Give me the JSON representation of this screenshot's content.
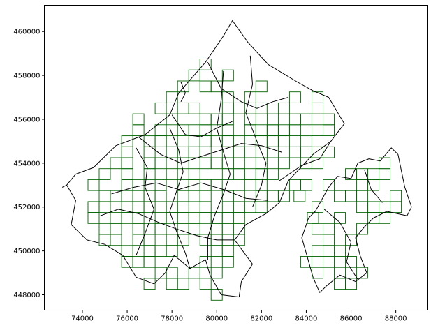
{
  "chart_data": {
    "type": "map",
    "title": "",
    "xlabel": "",
    "ylabel": "",
    "xlim": [
      72300,
      89400
    ],
    "ylim": [
      447300,
      461200
    ],
    "xticks": [
      74000,
      76000,
      78000,
      80000,
      82000,
      84000,
      86000,
      88000
    ],
    "yticks": [
      448000,
      450000,
      452000,
      454000,
      456000,
      458000,
      460000
    ],
    "grid": false,
    "colors": {
      "boundary": "#000000",
      "grid_cells": "#006400"
    },
    "boundaries": [
      [
        [
          74500,
          453800
        ],
        [
          75500,
          454800
        ],
        [
          76800,
          455300
        ],
        [
          77900,
          456200
        ],
        [
          78300,
          457200
        ],
        [
          79500,
          458600
        ],
        [
          80300,
          459800
        ],
        [
          80700,
          460500
        ],
        [
          81400,
          459500
        ],
        [
          82300,
          458500
        ],
        [
          83600,
          457700
        ],
        [
          84300,
          457300
        ],
        [
          85000,
          457000
        ],
        [
          85700,
          455800
        ],
        [
          85100,
          455000
        ],
        [
          84300,
          454400
        ],
        [
          83200,
          453200
        ],
        [
          82800,
          452200
        ],
        [
          82200,
          451700
        ],
        [
          81300,
          451200
        ],
        [
          80800,
          450500
        ],
        [
          81600,
          449400
        ],
        [
          81100,
          448600
        ],
        [
          81000,
          447900
        ],
        [
          80200,
          448000
        ],
        [
          79700,
          448900
        ],
        [
          79500,
          449600
        ],
        [
          78800,
          449200
        ],
        [
          78100,
          449800
        ],
        [
          77700,
          449000
        ],
        [
          77200,
          448500
        ],
        [
          76400,
          448800
        ],
        [
          75800,
          449800
        ],
        [
          75000,
          450300
        ],
        [
          74200,
          450500
        ],
        [
          73500,
          451200
        ],
        [
          73700,
          452300
        ],
        [
          73300,
          453000
        ],
        [
          73700,
          453500
        ],
        [
          74500,
          453800
        ]
      ],
      [
        [
          84400,
          451800
        ],
        [
          85000,
          452900
        ],
        [
          85400,
          453400
        ],
        [
          86000,
          453300
        ],
        [
          86300,
          454000
        ],
        [
          86800,
          454200
        ],
        [
          87300,
          454100
        ],
        [
          87800,
          454700
        ],
        [
          88100,
          454400
        ],
        [
          88400,
          452900
        ],
        [
          88700,
          452000
        ],
        [
          88500,
          451600
        ],
        [
          87600,
          451800
        ],
        [
          87000,
          451500
        ],
        [
          86600,
          451100
        ],
        [
          86200,
          450600
        ],
        [
          86400,
          449800
        ],
        [
          86700,
          449000
        ],
        [
          86200,
          448600
        ],
        [
          85500,
          448900
        ],
        [
          84900,
          448400
        ],
        [
          84600,
          448100
        ],
        [
          84300,
          448800
        ],
        [
          84000,
          449900
        ],
        [
          83800,
          450600
        ],
        [
          84100,
          451500
        ],
        [
          84400,
          451800
        ]
      ],
      [
        [
          82800,
          453200
        ],
        [
          83800,
          453900
        ],
        [
          84600,
          454200
        ],
        [
          85100,
          455000
        ]
      ],
      [
        [
          79600,
          458600
        ],
        [
          80200,
          457400
        ],
        [
          81100,
          456800
        ],
        [
          81800,
          456500
        ],
        [
          82500,
          456800
        ],
        [
          83200,
          457000
        ]
      ],
      [
        [
          76500,
          455200
        ],
        [
          77500,
          454400
        ],
        [
          78400,
          454000
        ],
        [
          79300,
          454300
        ],
        [
          80200,
          454600
        ],
        [
          81100,
          454900
        ],
        [
          82000,
          454800
        ],
        [
          82900,
          454500
        ]
      ],
      [
        [
          78000,
          456200
        ],
        [
          78600,
          455300
        ],
        [
          79300,
          455200
        ],
        [
          80000,
          455600
        ],
        [
          80700,
          455900
        ]
      ],
      [
        [
          75300,
          452600
        ],
        [
          76300,
          452900
        ],
        [
          77300,
          453100
        ],
        [
          78300,
          452800
        ],
        [
          79300,
          453100
        ],
        [
          80300,
          452800
        ],
        [
          81300,
          452400
        ],
        [
          82300,
          452300
        ]
      ],
      [
        [
          74800,
          451600
        ],
        [
          75600,
          451900
        ],
        [
          76500,
          451700
        ],
        [
          77400,
          451300
        ],
        [
          78200,
          451000
        ],
        [
          79100,
          450700
        ],
        [
          80000,
          450500
        ],
        [
          80800,
          450500
        ]
      ],
      [
        [
          77900,
          455600
        ],
        [
          78300,
          454600
        ],
        [
          78500,
          453600
        ],
        [
          78200,
          452700
        ],
        [
          77900,
          451800
        ],
        [
          78200,
          450900
        ],
        [
          78600,
          449900
        ],
        [
          78800,
          449200
        ]
      ],
      [
        [
          80300,
          458200
        ],
        [
          80200,
          456900
        ],
        [
          80000,
          455600
        ],
        [
          80300,
          454500
        ],
        [
          80600,
          453500
        ],
        [
          80300,
          452600
        ],
        [
          79900,
          451600
        ],
        [
          79600,
          450600
        ],
        [
          79600,
          449600
        ]
      ],
      [
        [
          81500,
          458900
        ],
        [
          81600,
          457600
        ],
        [
          81300,
          456300
        ],
        [
          81800,
          455000
        ],
        [
          82200,
          454000
        ],
        [
          82000,
          453000
        ],
        [
          81600,
          452000
        ]
      ],
      [
        [
          76400,
          454700
        ],
        [
          76900,
          453800
        ],
        [
          76800,
          452900
        ],
        [
          77200,
          451900
        ],
        [
          76800,
          450800
        ],
        [
          76400,
          449800
        ]
      ],
      [
        [
          73100,
          452900
        ],
        [
          73300,
          453000
        ]
      ],
      [
        [
          84800,
          451900
        ],
        [
          85500,
          451300
        ],
        [
          86000,
          450400
        ],
        [
          85800,
          449500
        ],
        [
          86300,
          448700
        ]
      ],
      [
        [
          86600,
          453700
        ],
        [
          86900,
          452800
        ],
        [
          87400,
          452200
        ]
      ],
      [
        [
          78400,
          457700
        ],
        [
          78600,
          457200
        ],
        [
          78400,
          456800
        ]
      ]
    ],
    "grid_cell_size": 500,
    "grid_cells": [
      [
        81000,
        452000
      ],
      [
        84300,
        451500
      ],
      [
        83700,
        452500
      ],
      [
        83500,
        453000
      ],
      [
        82500,
        452500
      ],
      [
        83000,
        452500
      ],
      [
        82500,
        453500
      ],
      [
        82000,
        453000
      ],
      [
        81500,
        453000
      ],
      [
        82000,
        452000
      ],
      [
        82000,
        452500
      ],
      [
        77000,
        453500
      ],
      [
        79000,
        453500
      ],
      [
        80500,
        450000
      ],
      [
        76000,
        449500
      ],
      [
        77000,
        448500
      ],
      [
        77000,
        451000
      ],
      [
        77500,
        451500
      ],
      [
        78500,
        452500
      ],
      [
        79500,
        452500
      ],
      [
        80500,
        452000
      ],
      [
        76500,
        451000
      ],
      [
        78000,
        451500
      ],
      [
        79500,
        451500
      ],
      [
        81000,
        452500
      ],
      [
        80500,
        449500
      ],
      [
        79500,
        448500
      ],
      [
        79500,
        450500
      ],
      [
        80000,
        451500
      ],
      [
        80500,
        450500
      ],
      [
        77500,
        449000
      ],
      [
        78500,
        448500
      ],
      [
        78000,
        450000
      ],
      [
        79000,
        451000
      ],
      [
        80500,
        451000
      ],
      [
        81000,
        450500
      ],
      [
        76000,
        450000
      ],
      [
        75500,
        451000
      ],
      [
        76000,
        451500
      ],
      [
        76000,
        452000
      ],
      [
        77000,
        452000
      ],
      [
        75500,
        451500
      ],
      [
        76500,
        452000
      ],
      [
        78000,
        448500
      ],
      [
        79000,
        449000
      ],
      [
        79500,
        449500
      ],
      [
        78000,
        449000
      ],
      [
        79000,
        451500
      ],
      [
        76000,
        453000
      ],
      [
        77500,
        452500
      ],
      [
        76500,
        452500
      ],
      [
        75500,
        450500
      ],
      [
        75000,
        450500
      ],
      [
        76500,
        449500
      ],
      [
        77000,
        450000
      ],
      [
        77500,
        451000
      ],
      [
        78500,
        451000
      ],
      [
        80000,
        450000
      ],
      [
        80000,
        450500
      ],
      [
        80000,
        449000
      ],
      [
        81000,
        451000
      ],
      [
        81000,
        451500
      ],
      [
        80500,
        451500
      ],
      [
        76500,
        450500
      ],
      [
        75000,
        451000
      ],
      [
        74500,
        451500
      ],
      [
        77000,
        449500
      ],
      [
        76500,
        451500
      ],
      [
        80000,
        451000
      ],
      [
        79500,
        452000
      ],
      [
        78500,
        450500
      ],
      [
        80000,
        448000
      ],
      [
        79000,
        452500
      ],
      [
        78500,
        452000
      ],
      [
        78000,
        450500
      ],
      [
        78500,
        451500
      ],
      [
        77000,
        452500
      ],
      [
        78000,
        452000
      ],
      [
        77500,
        450000
      ],
      [
        77000,
        450500
      ],
      [
        75500,
        452500
      ],
      [
        74500,
        453000
      ],
      [
        75500,
        454000
      ],
      [
        76000,
        454000
      ],
      [
        78500,
        454000
      ],
      [
        79500,
        454000
      ],
      [
        80000,
        454000
      ],
      [
        77000,
        454500
      ],
      [
        78000,
        454500
      ],
      [
        80500,
        454500
      ],
      [
        81000,
        454500
      ],
      [
        77500,
        455500
      ],
      [
        78500,
        455500
      ],
      [
        79500,
        455500
      ],
      [
        80500,
        455000
      ],
      [
        78000,
        455000
      ],
      [
        80000,
        455000
      ],
      [
        82000,
        454000
      ],
      [
        81500,
        454500
      ],
      [
        77000,
        455000
      ],
      [
        76500,
        455500
      ],
      [
        77500,
        455000
      ],
      [
        82500,
        454500
      ],
      [
        83000,
        454000
      ],
      [
        76000,
        454500
      ],
      [
        76000,
        455000
      ],
      [
        81500,
        455500
      ],
      [
        82000,
        455500
      ],
      [
        82000,
        455000
      ],
      [
        83000,
        455500
      ],
      [
        83500,
        455500
      ],
      [
        83500,
        456000
      ],
      [
        84000,
        455000
      ],
      [
        84500,
        455500
      ],
      [
        85000,
        456000
      ],
      [
        84500,
        456500
      ],
      [
        83500,
        457000
      ],
      [
        82000,
        456500
      ],
      [
        81000,
        456500
      ],
      [
        81500,
        457000
      ],
      [
        80500,
        456500
      ],
      [
        80500,
        457000
      ],
      [
        80000,
        457500
      ],
      [
        79500,
        457500
      ],
      [
        80500,
        458000
      ],
      [
        78000,
        457000
      ],
      [
        78500,
        457500
      ],
      [
        79000,
        458000
      ],
      [
        79500,
        458500
      ],
      [
        79000,
        456500
      ],
      [
        79500,
        456000
      ],
      [
        78000,
        456000
      ],
      [
        78500,
        456500
      ],
      [
        76500,
        456000
      ],
      [
        79000,
        454500
      ],
      [
        80000,
        453000
      ],
      [
        81000,
        453500
      ],
      [
        80500,
        453500
      ],
      [
        82000,
        457500
      ],
      [
        83000,
        456500
      ],
      [
        84000,
        456000
      ],
      [
        84500,
        457000
      ],
      [
        85000,
        455500
      ],
      [
        77500,
        456500
      ],
      [
        82500,
        456000
      ],
      [
        81500,
        456000
      ],
      [
        84000,
        454500
      ],
      [
        76500,
        453000
      ],
      [
        76000,
        452500
      ],
      [
        75000,
        452000
      ],
      [
        74500,
        452000
      ],
      [
        75000,
        452500
      ],
      [
        75000,
        453500
      ],
      [
        76000,
        453500
      ],
      [
        77500,
        454000
      ],
      [
        78500,
        454500
      ],
      [
        78000,
        453500
      ],
      [
        77500,
        453000
      ],
      [
        79000,
        453000
      ],
      [
        80500,
        452500
      ],
      [
        81500,
        452000
      ],
      [
        79500,
        453000
      ],
      [
        81000,
        454000
      ],
      [
        81500,
        453500
      ],
      [
        80500,
        454000
      ],
      [
        77000,
        454000
      ],
      [
        79000,
        455000
      ],
      [
        79500,
        455000
      ],
      [
        79000,
        455500
      ],
      [
        80000,
        456000
      ],
      [
        80500,
        456000
      ],
      [
        80500,
        455500
      ],
      [
        81000,
        455000
      ],
      [
        79500,
        454500
      ],
      [
        78500,
        453000
      ],
      [
        82000,
        453500
      ],
      [
        82500,
        455500
      ],
      [
        83000,
        455000
      ],
      [
        83500,
        454500
      ],
      [
        84500,
        454500
      ],
      [
        84500,
        454000
      ],
      [
        84000,
        454000
      ],
      [
        82500,
        455000
      ],
      [
        85000,
        454500
      ],
      [
        86000,
        453500
      ],
      [
        86500,
        453000
      ],
      [
        85000,
        453000
      ],
      [
        84000,
        453000
      ],
      [
        85500,
        452500
      ],
      [
        86000,
        452500
      ],
      [
        85500,
        451500
      ],
      [
        85000,
        451000
      ],
      [
        85000,
        450500
      ],
      [
        84500,
        450000
      ],
      [
        85000,
        449500
      ],
      [
        84500,
        449000
      ],
      [
        85500,
        449000
      ],
      [
        86000,
        449500
      ],
      [
        85500,
        450000
      ],
      [
        86000,
        450500
      ],
      [
        86500,
        451000
      ],
      [
        86500,
        452000
      ],
      [
        87000,
        452000
      ],
      [
        86500,
        452500
      ],
      [
        87000,
        453000
      ],
      [
        87500,
        453500
      ],
      [
        87500,
        454000
      ],
      [
        86500,
        453500
      ],
      [
        87000,
        451500
      ],
      [
        87500,
        452000
      ],
      [
        87500,
        451500
      ],
      [
        88000,
        452000
      ],
      [
        88000,
        452500
      ],
      [
        87000,
        453500
      ],
      [
        86500,
        449000
      ],
      [
        84500,
        451000
      ],
      [
        84500,
        452000
      ],
      [
        84000,
        449500
      ],
      [
        85500,
        448500
      ],
      [
        86000,
        448500
      ]
    ]
  }
}
